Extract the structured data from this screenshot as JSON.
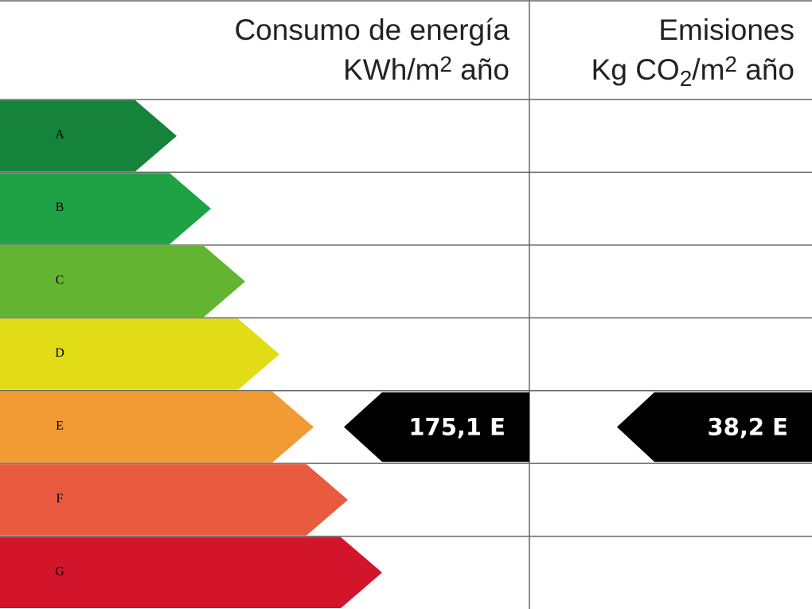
{
  "header": {
    "energy": {
      "title": "Consumo de energía",
      "unit": [
        "KWh/m",
        "2",
        " año"
      ]
    },
    "emissions": {
      "title": "Emisiones",
      "unit": [
        "Kg CO",
        "2",
        "/m",
        "2",
        " año"
      ]
    }
  },
  "classes": [
    {
      "letter": "A",
      "color": "#15843a"
    },
    {
      "letter": "B",
      "color": "#1ea245"
    },
    {
      "letter": "C",
      "color": "#62b431"
    },
    {
      "letter": "D",
      "color": "#e1dc15"
    },
    {
      "letter": "E",
      "color": "#f29a34"
    },
    {
      "letter": "F",
      "color": "#e85b3f"
    },
    {
      "letter": "G",
      "color": "#d2152b"
    }
  ],
  "indicators": {
    "energy": "175,1 E",
    "emissions": "38,2 E"
  }
}
